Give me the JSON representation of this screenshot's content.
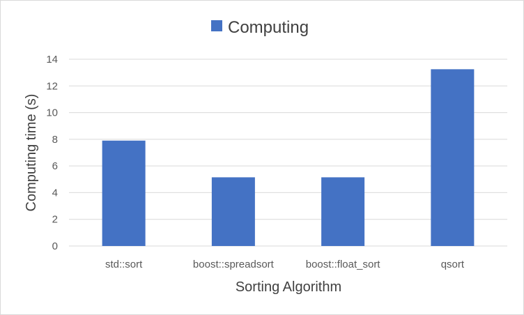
{
  "chart_data": {
    "type": "bar",
    "categories": [
      "std::sort",
      "boost::spreadsort",
      "boost::float_sort",
      "qsort"
    ],
    "series": [
      {
        "name": "Computing",
        "values": [
          7.9,
          5.15,
          5.15,
          13.25
        ]
      }
    ],
    "title": "",
    "xlabel": "Sorting Algorithm",
    "ylabel": "Computing time (s)",
    "ylim": [
      0,
      14
    ],
    "yticks": [
      0,
      2,
      4,
      6,
      8,
      10,
      12,
      14
    ],
    "grid": true,
    "legend_position": "top",
    "colors": {
      "bar": "#4472c4",
      "grid": "#d9d9d9",
      "axis_text": "#595959",
      "title_text": "#404040"
    }
  }
}
